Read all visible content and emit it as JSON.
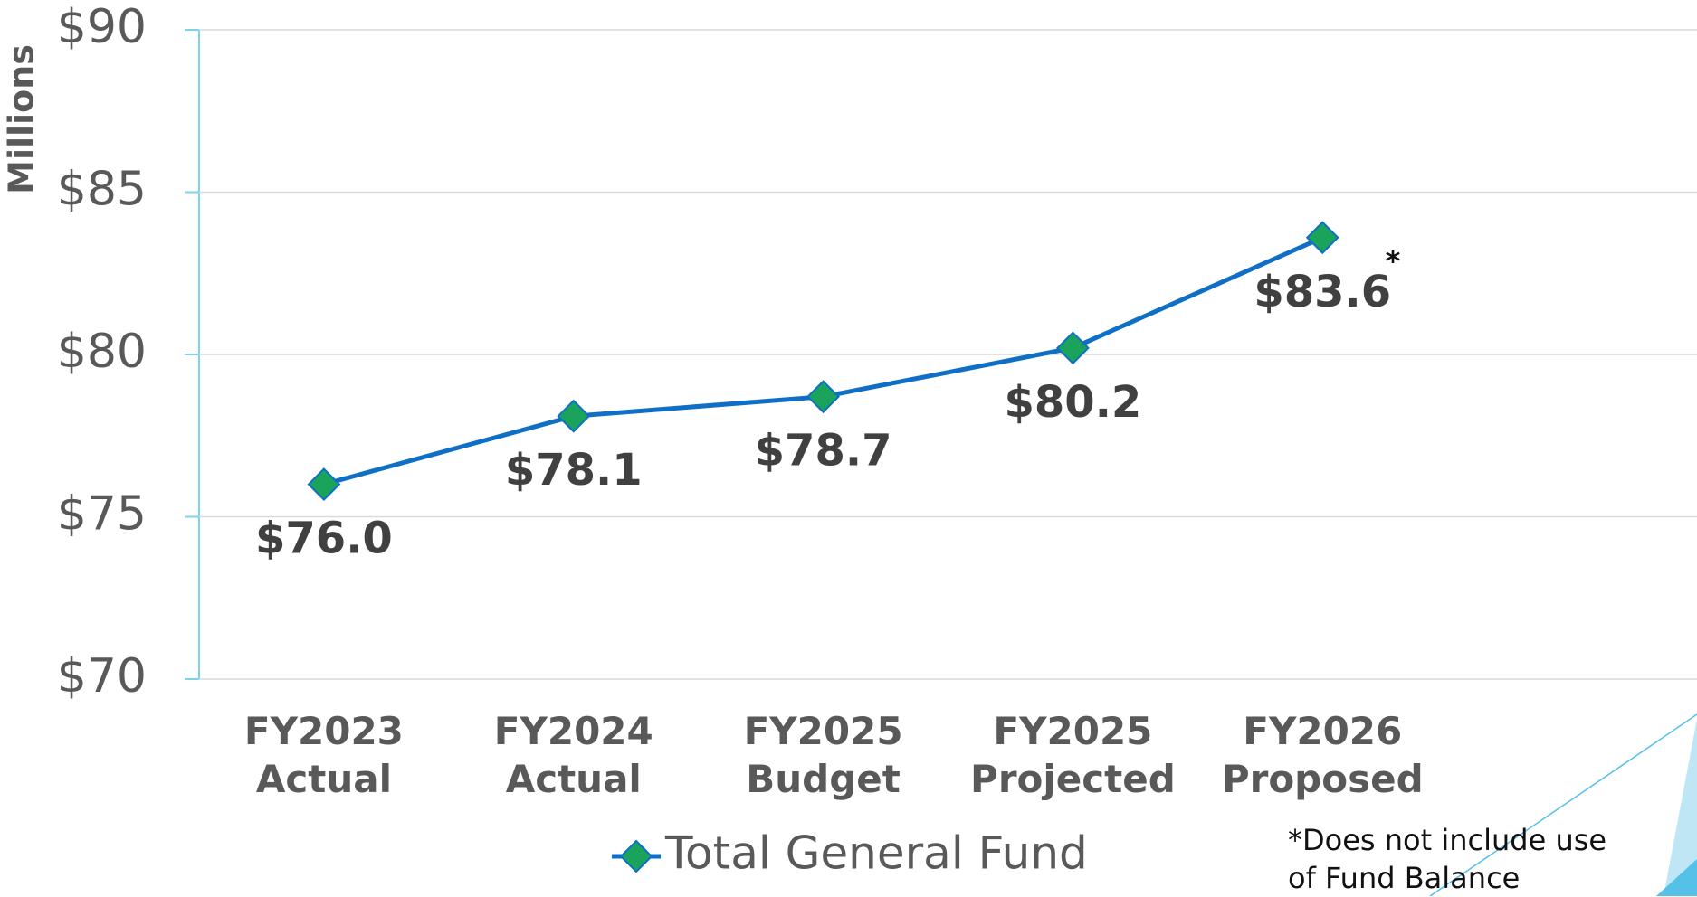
{
  "chart_data": {
    "type": "line",
    "y_axis_label": "Millions",
    "categories": [
      "FY2023 Actual",
      "FY2024 Actual",
      "FY2025 Budget",
      "FY2025 Projected",
      "FY2026 Proposed",
      null
    ],
    "series": [
      {
        "name": "Total General Fund",
        "color": "#0f6fc6",
        "marker_color": "#1aa35a",
        "values": [
          76.0,
          78.1,
          78.7,
          80.2,
          83.6,
          null
        ],
        "value_labels": [
          "$76.0",
          "$78.1",
          "$78.7",
          "$80.2",
          "$83.6",
          null
        ]
      }
    ],
    "ylim": [
      70,
      90
    ],
    "yticks": [
      {
        "value": 70,
        "label": "$70"
      },
      {
        "value": 75,
        "label": "$75"
      },
      {
        "value": 80,
        "label": "$80"
      },
      {
        "value": 85,
        "label": "$85"
      },
      {
        "value": 90,
        "label": "$90"
      }
    ],
    "grid": true,
    "annotations": [
      "*"
    ],
    "footnote": "*Does not include use of Fund Balance"
  }
}
